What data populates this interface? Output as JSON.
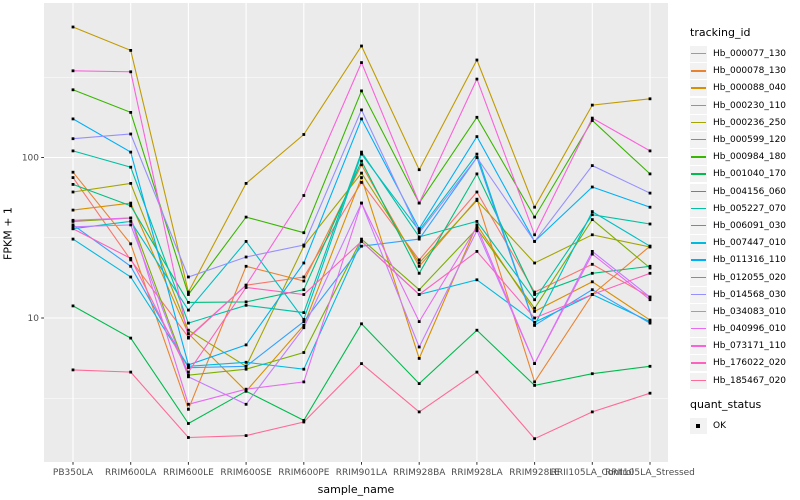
{
  "chart_data": {
    "type": "line",
    "title": "",
    "xlabel": "sample_name",
    "ylabel": "FPKM + 1",
    "y_scale": "log10",
    "ylim": [
      1.3,
      900
    ],
    "y_ticks": [
      100,
      10
    ],
    "y_tick_labels": [
      "100",
      "10"
    ],
    "y_minor_ticks": [
      316.2,
      31.62,
      3.162
    ],
    "grid": "on",
    "panel_bg": "#EBEBEB",
    "gridline_color": "#FFFFFF",
    "tick_label_color": "#4D4D4D",
    "marker": "black-square",
    "legend_position": "right",
    "legend_title": "tracking_id",
    "legend2_title": "quant_status",
    "legend2_items": [
      "OK"
    ],
    "categories": [
      "PB350LA",
      "RRIM600LA",
      "RRIM600LE",
      "RRIM600SE",
      "RRIM600PE",
      "RRIM901LA",
      "RRIM928BA",
      "RRIM928LA",
      "RRIM928LE",
      "RRII105LA_Control",
      "RRII105LA_Stressed"
    ],
    "series": [
      {
        "name": "Hb_000077_130",
        "color": "#F8766D",
        "values": [
          75,
          23,
          7.6,
          16,
          18,
          70,
          23,
          61,
          14.5,
          21.6,
          13.5
        ]
      },
      {
        "name": "Hb_000078_130",
        "color": "#EA8331",
        "values": [
          81,
          29,
          2.7,
          21,
          17,
          90,
          21,
          55,
          4.0,
          14,
          28
        ]
      },
      {
        "name": "Hb_000088_040",
        "color": "#D89000",
        "values": [
          47,
          52,
          8.0,
          3.5,
          9.0,
          75,
          5.6,
          38,
          11,
          16.8,
          9.7
        ]
      },
      {
        "name": "Hb_000230_110",
        "color": "#C09B00",
        "values": [
          650,
          465,
          14.5,
          69,
          139,
          495,
          84,
          405,
          49,
          212,
          232
        ]
      },
      {
        "name": "Hb_000236_250",
        "color": "#A3A500",
        "values": [
          61,
          69,
          8.4,
          5.0,
          28,
          80,
          22,
          54,
          22,
          33,
          27.7
        ]
      },
      {
        "name": "Hb_000599_120",
        "color": "#7CAE00",
        "values": [
          40,
          42,
          4.4,
          4.8,
          6.1,
          31,
          15,
          36,
          11.5,
          41,
          20.5
        ]
      },
      {
        "name": "Hb_000984_180",
        "color": "#39B600",
        "values": [
          264,
          191,
          14,
          42.5,
          34,
          260,
          52,
          178,
          42.5,
          170,
          79
        ]
      },
      {
        "name": "Hb_001040_170",
        "color": "#00BB4E",
        "values": [
          11.9,
          7.5,
          2.2,
          3.5,
          2.3,
          9.2,
          3.9,
          8.4,
          3.8,
          4.5,
          5.0
        ]
      },
      {
        "name": "Hb_004156_060",
        "color": "#00BF7D",
        "values": [
          68,
          50,
          12.5,
          12.6,
          15,
          95,
          19,
          79,
          14,
          19,
          21
        ]
      },
      {
        "name": "Hb_005227_070",
        "color": "#00C1A3",
        "values": [
          110,
          87,
          9.3,
          12,
          10.8,
          108,
          32,
          40,
          13,
          44,
          38.5
        ]
      },
      {
        "name": "Hb_006091_030",
        "color": "#00BFC4",
        "values": [
          36,
          40,
          11.2,
          30,
          9.8,
          105,
          35,
          105,
          9.0,
          46,
          28
        ]
      },
      {
        "name": "Hb_007447_010",
        "color": "#00BAE0",
        "values": [
          31,
          18,
          5.0,
          5.3,
          4.8,
          30,
          14,
          17.3,
          9.4,
          14,
          9.5
        ]
      },
      {
        "name": "Hb_011316_110",
        "color": "#00B0F6",
        "values": [
          174,
          108,
          5.1,
          6.8,
          22,
          174,
          36,
          135,
          30,
          65.5,
          49
        ]
      },
      {
        "name": "Hb_012055_020",
        "color": "#35A2FF",
        "values": [
          38,
          21,
          4.9,
          5.0,
          9.5,
          28,
          31,
          100,
          9.0,
          15,
          9.3
        ]
      },
      {
        "name": "Hb_014568_030",
        "color": "#9590FF",
        "values": [
          131,
          140,
          18,
          24,
          28.5,
          198,
          34,
          100,
          30,
          89,
          60
        ]
      },
      {
        "name": "Hb_034083_010",
        "color": "#C77CFF",
        "values": [
          37,
          38,
          4.3,
          2.9,
          8.7,
          52,
          6.6,
          35,
          5.2,
          26,
          13.5
        ]
      },
      {
        "name": "Hb_040996_010",
        "color": "#E76BF3",
        "values": [
          40.6,
          42,
          2.9,
          3.6,
          4.0,
          52,
          9.5,
          37,
          5.2,
          25,
          13
        ]
      },
      {
        "name": "Hb_073171_110",
        "color": "#FA62DB",
        "values": [
          347,
          342,
          7.5,
          16,
          58,
          390,
          52,
          308,
          33,
          176,
          110
        ]
      },
      {
        "name": "Hb_176022_020",
        "color": "#FF62BC",
        "values": [
          36,
          23.5,
          4.6,
          15.5,
          14,
          30,
          14,
          26,
          10,
          14,
          19
        ]
      },
      {
        "name": "Hb_185467_020",
        "color": "#FF6A98",
        "values": [
          4.75,
          4.6,
          1.8,
          1.85,
          2.25,
          5.2,
          2.6,
          4.6,
          1.77,
          2.6,
          3.4
        ]
      }
    ]
  }
}
